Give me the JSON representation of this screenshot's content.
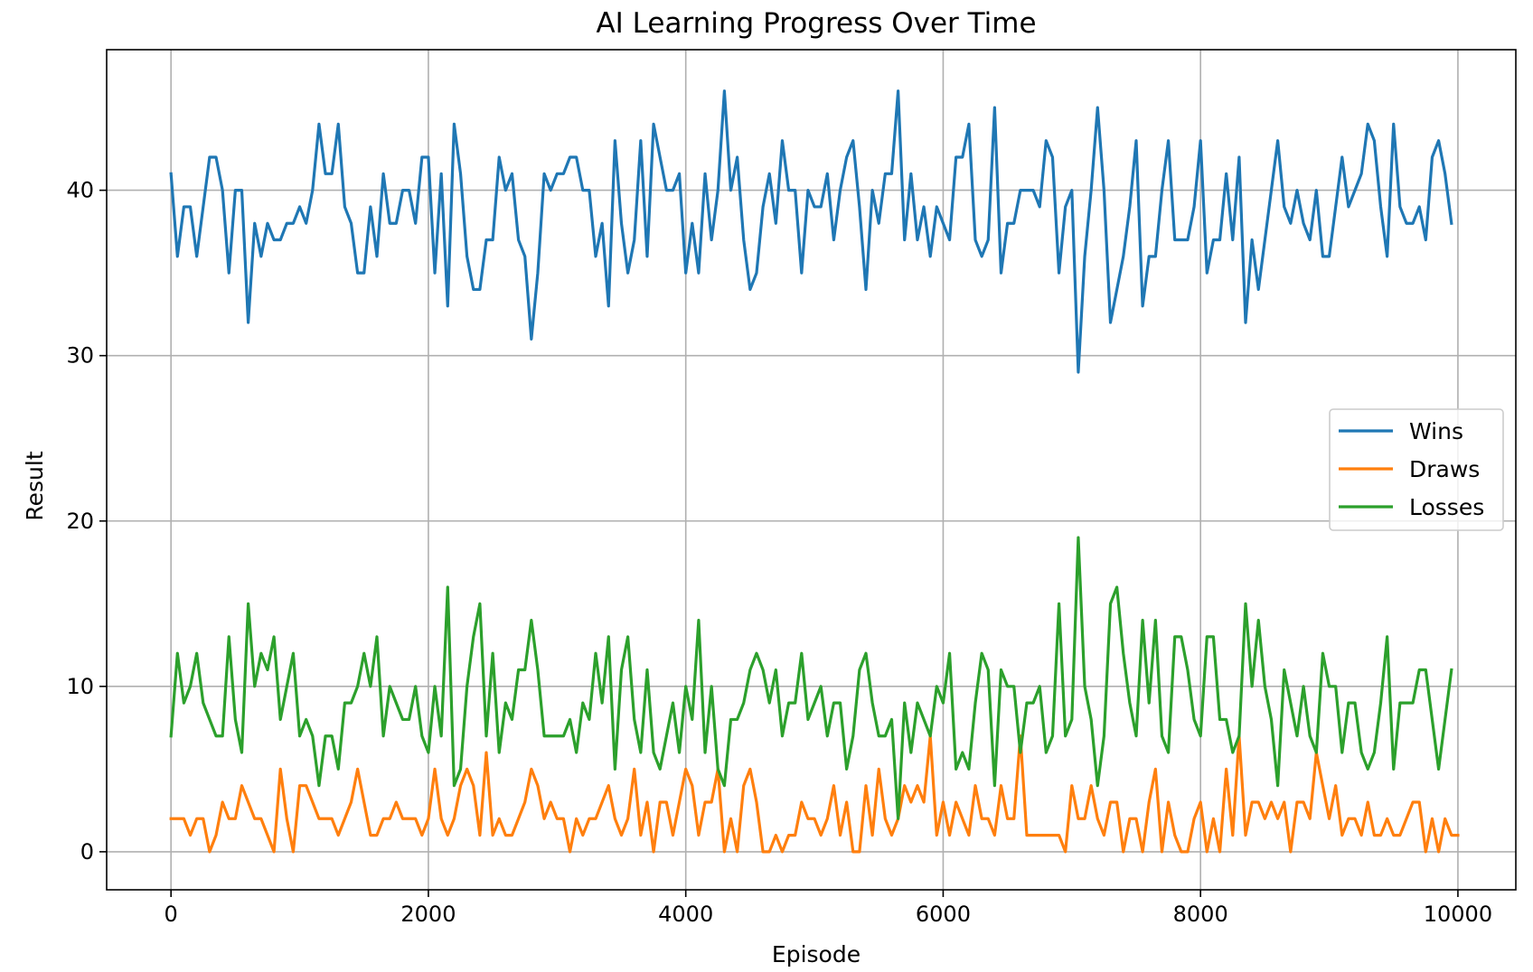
{
  "chart_data": {
    "type": "line",
    "title": "AI Learning Progress Over Time",
    "xlabel": "Episode",
    "ylabel": "Result",
    "xlim": [
      -500,
      10450
    ],
    "ylim": [
      -2.3,
      48.5
    ],
    "x_ticks": [
      0,
      2000,
      4000,
      6000,
      8000,
      10000
    ],
    "y_ticks": [
      0,
      10,
      20,
      30,
      40
    ],
    "grid": true,
    "legend_position": "center-right",
    "x_start": 0,
    "x_step": 50,
    "series": [
      {
        "name": "Wins",
        "color": "#1f77b4",
        "values": [
          41,
          36,
          39,
          39,
          36,
          39,
          42,
          42,
          40,
          35,
          40,
          40,
          32,
          38,
          36,
          38,
          37,
          37,
          38,
          38,
          39,
          38,
          40,
          44,
          41,
          41,
          44,
          39,
          38,
          35,
          35,
          39,
          36,
          41,
          38,
          38,
          40,
          40,
          38,
          42,
          42,
          35,
          41,
          33,
          44,
          41,
          36,
          34,
          34,
          37,
          37,
          42,
          40,
          41,
          37,
          36,
          31,
          35,
          41,
          40,
          41,
          41,
          42,
          42,
          40,
          40,
          36,
          38,
          33,
          43,
          38,
          35,
          37,
          43,
          36,
          44,
          42,
          40,
          40,
          41,
          35,
          38,
          35,
          41,
          37,
          40,
          46,
          40,
          42,
          37,
          34,
          35,
          39,
          41,
          38,
          43,
          40,
          40,
          35,
          40,
          39,
          39,
          41,
          37,
          40,
          42,
          43,
          39,
          34,
          40,
          38,
          41,
          41,
          46,
          37,
          41,
          37,
          39,
          36,
          39,
          38,
          37,
          42,
          42,
          44,
          37,
          36,
          37,
          45,
          35,
          38,
          38,
          40,
          40,
          40,
          39,
          43,
          42,
          35,
          39,
          40,
          29,
          36,
          40,
          45,
          40,
          32,
          34,
          36,
          39,
          43,
          33,
          36,
          36,
          40,
          43,
          37,
          37,
          37,
          39,
          43,
          35,
          37,
          37,
          41,
          37,
          42,
          32,
          37,
          34,
          37,
          40,
          43,
          39,
          38,
          40,
          38,
          37,
          40,
          36,
          36,
          39,
          42,
          39,
          40,
          41,
          44,
          43,
          39,
          36,
          44,
          39,
          38,
          38,
          39,
          37,
          42,
          43,
          41,
          38
        ]
      },
      {
        "name": "Draws",
        "color": "#ff7f0e",
        "values": [
          2,
          2,
          2,
          1,
          2,
          2,
          0,
          1,
          3,
          2,
          2,
          4,
          3,
          2,
          2,
          1,
          0,
          5,
          2,
          0,
          4,
          4,
          3,
          2,
          2,
          2,
          1,
          2,
          3,
          5,
          3,
          1,
          1,
          2,
          2,
          3,
          2,
          2,
          2,
          1,
          2,
          5,
          2,
          1,
          2,
          4,
          5,
          4,
          1,
          6,
          1,
          2,
          1,
          1,
          2,
          3,
          5,
          4,
          2,
          3,
          2,
          2,
          0,
          2,
          1,
          2,
          2,
          3,
          4,
          2,
          1,
          2,
          5,
          1,
          3,
          0,
          3,
          3,
          1,
          3,
          5,
          4,
          1,
          3,
          3,
          5,
          0,
          2,
          0,
          4,
          5,
          3,
          0,
          0,
          1,
          0,
          1,
          1,
          3,
          2,
          2,
          1,
          2,
          4,
          1,
          3,
          0,
          0,
          4,
          1,
          5,
          2,
          1,
          2,
          4,
          3,
          4,
          3,
          7,
          1,
          3,
          1,
          3,
          2,
          1,
          4,
          2,
          2,
          1,
          4,
          2,
          2,
          7,
          1,
          1,
          1,
          1,
          1,
          1,
          0,
          4,
          2,
          2,
          4,
          2,
          1,
          3,
          3,
          0,
          2,
          2,
          0,
          3,
          5,
          0,
          3,
          1,
          0,
          0,
          2,
          3,
          0,
          2,
          0,
          5,
          1,
          7,
          1,
          3,
          3,
          2,
          3,
          2,
          3,
          0,
          3,
          3,
          2,
          6,
          4,
          2,
          4,
          1,
          2,
          2,
          1,
          3,
          1,
          1,
          2,
          1,
          1,
          2,
          3,
          3,
          0,
          2,
          0,
          2,
          1,
          1
        ]
      },
      {
        "name": "Losses",
        "color": "#2ca02c",
        "values": [
          7,
          12,
          9,
          10,
          12,
          9,
          8,
          7,
          7,
          13,
          8,
          6,
          15,
          10,
          12,
          11,
          13,
          8,
          10,
          12,
          7,
          8,
          7,
          4,
          7,
          7,
          5,
          9,
          9,
          10,
          12,
          10,
          13,
          7,
          10,
          9,
          8,
          8,
          10,
          7,
          6,
          10,
          7,
          16,
          4,
          5,
          10,
          13,
          15,
          7,
          12,
          6,
          9,
          8,
          11,
          11,
          14,
          11,
          7,
          7,
          7,
          7,
          8,
          6,
          9,
          8,
          12,
          9,
          13,
          5,
          11,
          13,
          8,
          6,
          11,
          6,
          5,
          7,
          9,
          6,
          10,
          8,
          14,
          6,
          10,
          5,
          4,
          8,
          8,
          9,
          11,
          12,
          11,
          9,
          11,
          7,
          9,
          9,
          12,
          8,
          9,
          10,
          7,
          9,
          9,
          5,
          7,
          11,
          12,
          9,
          7,
          7,
          8,
          2,
          9,
          6,
          9,
          8,
          7,
          10,
          9,
          12,
          5,
          6,
          5,
          9,
          12,
          11,
          4,
          11,
          10,
          10,
          6,
          9,
          9,
          10,
          6,
          7,
          15,
          7,
          8,
          19,
          10,
          8,
          4,
          7,
          15,
          16,
          12,
          9,
          7,
          14,
          9,
          14,
          7,
          6,
          13,
          13,
          11,
          8,
          7,
          13,
          13,
          8,
          8,
          6,
          7,
          15,
          10,
          14,
          10,
          8,
          4,
          11,
          9,
          7,
          10,
          7,
          6,
          12,
          10,
          10,
          6,
          9,
          9,
          6,
          5,
          6,
          9,
          13,
          5,
          9,
          9,
          9,
          11,
          11,
          8,
          5,
          8,
          11
        ]
      }
    ]
  }
}
